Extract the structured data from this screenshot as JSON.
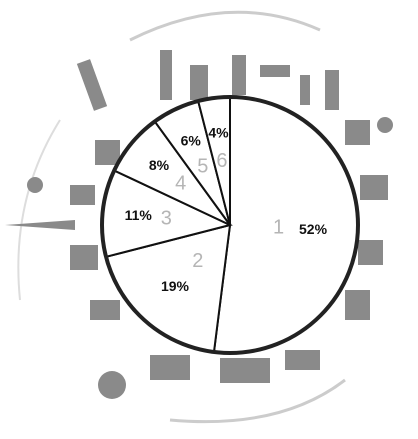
{
  "chart_data": {
    "type": "pie",
    "categories": [
      "1",
      "2",
      "3",
      "4",
      "5",
      "6"
    ],
    "values": [
      52,
      19,
      11,
      8,
      6,
      4
    ],
    "value_labels": [
      "52%",
      "19%",
      "11%",
      "8%",
      "6%",
      "4%"
    ],
    "color": "#ffffff"
  }
}
